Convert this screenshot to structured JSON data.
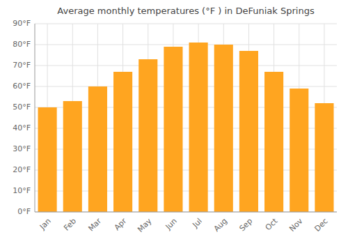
{
  "chart_data": {
    "type": "bar",
    "title": "Average monthly temperatures (°F ) in DeFuniak Springs",
    "categories": [
      "Jan",
      "Feb",
      "Mar",
      "Apr",
      "May",
      "Jun",
      "Jul",
      "Aug",
      "Sep",
      "Oct",
      "Nov",
      "Dec"
    ],
    "values": [
      50,
      53,
      60,
      67,
      73,
      79,
      81,
      80,
      77,
      67,
      59,
      52
    ],
    "color": "#FFA520",
    "ylim": [
      0,
      90
    ],
    "yticks": [
      {
        "value": 0,
        "label": "0°F"
      },
      {
        "value": 10,
        "label": "10°F"
      },
      {
        "value": 20,
        "label": "20°F"
      },
      {
        "value": 30,
        "label": "30°F"
      },
      {
        "value": 40,
        "label": "40°F"
      },
      {
        "value": 50,
        "label": "50°F"
      },
      {
        "value": 60,
        "label": "60°F"
      },
      {
        "value": 70,
        "label": "70°F"
      },
      {
        "value": 80,
        "label": "80°F"
      },
      {
        "value": 90,
        "label": "90°F"
      }
    ],
    "grid": true
  }
}
